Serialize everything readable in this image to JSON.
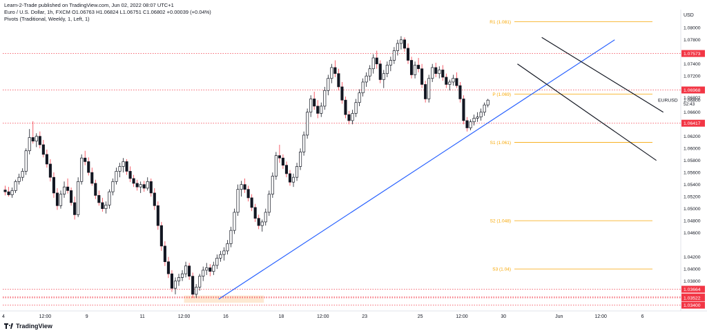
{
  "header": {
    "publisher_line": "Learn-2-Trade published on TradingView.com, Jun 02, 2022 08:07 UTC+1",
    "symbol_line": "Euro / U.S. Dollar, 1h, FXCM  O1.06763  H1.06824  L1.06751  C1.06802  +0.00039 (+0.04%)",
    "indicator_line": "Pivots (Traditional, Weekly, 1, Left, 1)"
  },
  "footer": {
    "brand": "TradingView",
    "logo_icon": "tradingview-logo-icon"
  },
  "chart_data": {
    "type": "candlestick",
    "symbol": "EURUSD",
    "currency_label": "USD",
    "timeframe": "1h",
    "ylim": [
      1.0335,
      1.083
    ],
    "y_ticks": [
      1.08,
      1.078,
      1.074,
      1.072,
      1.068,
      1.066,
      1.062,
      1.06,
      1.058,
      1.056,
      1.054,
      1.052,
      1.05,
      1.048,
      1.046,
      1.042,
      1.04,
      1.038
    ],
    "y_tick_labels": [
      "1.08000",
      "1.07800",
      "1.07400",
      "1.07200",
      "1.06800",
      "1.06600",
      "1.06200",
      "1.06000",
      "1.05800",
      "1.05600",
      "1.05400",
      "1.05200",
      "1.05000",
      "1.04800",
      "1.04600",
      "1.04200",
      "1.04000",
      "1.03800"
    ],
    "x_ticks": [
      {
        "label": "4",
        "bar": 0
      },
      {
        "label": "12:00",
        "bar": 12
      },
      {
        "label": "9",
        "bar": 24
      },
      {
        "label": "11",
        "bar": 40
      },
      {
        "label": "12:00",
        "bar": 52
      },
      {
        "label": "16",
        "bar": 64
      },
      {
        "label": "18",
        "bar": 80
      },
      {
        "label": "12:00",
        "bar": 92
      },
      {
        "label": "23",
        "bar": 104
      },
      {
        "label": "25",
        "bar": 120
      },
      {
        "label": "12:00",
        "bar": 132
      },
      {
        "label": "30",
        "bar": 144
      },
      {
        "label": "Jun",
        "bar": 160
      },
      {
        "label": "12:00",
        "bar": 172
      },
      {
        "label": "6",
        "bar": 184
      }
    ],
    "ohlc": [
      [
        1.0531,
        1.0538,
        1.0522,
        1.0528
      ],
      [
        1.0528,
        1.0536,
        1.052,
        1.0523
      ],
      [
        1.0523,
        1.0535,
        1.0518,
        1.053
      ],
      [
        1.053,
        1.0548,
        1.0526,
        1.0545
      ],
      [
        1.0545,
        1.0558,
        1.054,
        1.0552
      ],
      [
        1.0552,
        1.0567,
        1.0546,
        1.0562
      ],
      [
        1.0562,
        1.06,
        1.0556,
        1.0596
      ],
      [
        1.0596,
        1.0632,
        1.059,
        1.0618
      ],
      [
        1.0618,
        1.0645,
        1.0608,
        1.0612
      ],
      [
        1.0612,
        1.0625,
        1.0602,
        1.062
      ],
      [
        1.062,
        1.0628,
        1.06,
        1.0606
      ],
      [
        1.0606,
        1.0614,
        1.0585,
        1.059
      ],
      [
        1.059,
        1.0598,
        1.0568,
        1.0574
      ],
      [
        1.0574,
        1.0582,
        1.0545,
        1.0552
      ],
      [
        1.0552,
        1.056,
        1.0518,
        1.0526
      ],
      [
        1.0526,
        1.0534,
        1.0498,
        1.0505
      ],
      [
        1.0505,
        1.053,
        1.05,
        1.0524
      ],
      [
        1.0524,
        1.0545,
        1.0518,
        1.0536
      ],
      [
        1.0536,
        1.055,
        1.0525,
        1.053
      ],
      [
        1.053,
        1.0535,
        1.0505,
        1.051
      ],
      [
        1.051,
        1.052,
        1.0482,
        1.049
      ],
      [
        1.049,
        1.0552,
        1.0486,
        1.0545
      ],
      [
        1.0545,
        1.059,
        1.054,
        1.0584
      ],
      [
        1.0584,
        1.0596,
        1.0572,
        1.0578
      ],
      [
        1.0578,
        1.0585,
        1.0555,
        1.056
      ],
      [
        1.056,
        1.0568,
        1.0538,
        1.0542
      ],
      [
        1.0542,
        1.0548,
        1.0516,
        1.0522
      ],
      [
        1.0522,
        1.053,
        1.0505,
        1.051
      ],
      [
        1.051,
        1.0518,
        1.0495,
        1.05
      ],
      [
        1.05,
        1.0512,
        1.0492,
        1.0506
      ],
      [
        1.0506,
        1.0532,
        1.05,
        1.0528
      ],
      [
        1.0528,
        1.055,
        1.0522,
        1.0545
      ],
      [
        1.0545,
        1.0568,
        1.054,
        1.0562
      ],
      [
        1.0562,
        1.0576,
        1.0552,
        1.057
      ],
      [
        1.057,
        1.0584,
        1.056,
        1.0578
      ],
      [
        1.0578,
        1.0582,
        1.0556,
        1.0562
      ],
      [
        1.0562,
        1.057,
        1.0544,
        1.055
      ],
      [
        1.055,
        1.0556,
        1.0536,
        1.0542
      ],
      [
        1.0542,
        1.0548,
        1.053,
        1.0536
      ],
      [
        1.0536,
        1.0545,
        1.0526,
        1.054
      ],
      [
        1.054,
        1.0546,
        1.0528,
        1.0534
      ],
      [
        1.0534,
        1.0552,
        1.053,
        1.0545
      ],
      [
        1.0545,
        1.055,
        1.052,
        1.0526
      ],
      [
        1.0526,
        1.0534,
        1.0498,
        1.0505
      ],
      [
        1.0505,
        1.0512,
        1.0465,
        1.0472
      ],
      [
        1.0472,
        1.0478,
        1.043,
        1.0438
      ],
      [
        1.0438,
        1.0446,
        1.0405,
        1.0412
      ],
      [
        1.0412,
        1.042,
        1.0385,
        1.0392
      ],
      [
        1.0392,
        1.0398,
        1.0362,
        1.0368
      ],
      [
        1.0368,
        1.0386,
        1.0358,
        1.038
      ],
      [
        1.038,
        1.0392,
        1.0372,
        1.0386
      ],
      [
        1.0386,
        1.0398,
        1.038,
        1.0392
      ],
      [
        1.0392,
        1.0412,
        1.0386,
        1.0405
      ],
      [
        1.0405,
        1.041,
        1.0382,
        1.0388
      ],
      [
        1.0388,
        1.0394,
        1.0352,
        1.0358
      ],
      [
        1.0358,
        1.0375,
        1.0352,
        1.037
      ],
      [
        1.037,
        1.0392,
        1.0364,
        1.0388
      ],
      [
        1.0388,
        1.0404,
        1.038,
        1.0398
      ],
      [
        1.0398,
        1.041,
        1.039,
        1.0402
      ],
      [
        1.0402,
        1.0408,
        1.0388,
        1.0396
      ],
      [
        1.0396,
        1.0412,
        1.039,
        1.0406
      ],
      [
        1.0406,
        1.0424,
        1.04,
        1.0418
      ],
      [
        1.0418,
        1.043,
        1.0412,
        1.0424
      ],
      [
        1.0424,
        1.0436,
        1.0414,
        1.043
      ],
      [
        1.043,
        1.0448,
        1.0424,
        1.0442
      ],
      [
        1.0442,
        1.047,
        1.0436,
        1.0464
      ],
      [
        1.0464,
        1.05,
        1.0458,
        1.0494
      ],
      [
        1.0494,
        1.054,
        1.0488,
        1.0532
      ],
      [
        1.0532,
        1.0546,
        1.052,
        1.054
      ],
      [
        1.054,
        1.055,
        1.0526,
        1.0532
      ],
      [
        1.0532,
        1.0538,
        1.0512,
        1.0518
      ],
      [
        1.0518,
        1.0524,
        1.0496,
        1.0502
      ],
      [
        1.0502,
        1.0508,
        1.0478,
        1.0484
      ],
      [
        1.0484,
        1.049,
        1.0466,
        1.0472
      ],
      [
        1.0472,
        1.0482,
        1.0462,
        1.0478
      ],
      [
        1.0478,
        1.05,
        1.0472,
        1.0494
      ],
      [
        1.0494,
        1.053,
        1.0488,
        1.0524
      ],
      [
        1.0524,
        1.056,
        1.0518,
        1.0554
      ],
      [
        1.0554,
        1.0594,
        1.0548,
        1.0588
      ],
      [
        1.0588,
        1.0606,
        1.0576,
        1.0584
      ],
      [
        1.0584,
        1.059,
        1.0566,
        1.0572
      ],
      [
        1.0572,
        1.0578,
        1.0552,
        1.0558
      ],
      [
        1.0558,
        1.0564,
        1.0538,
        1.0544
      ],
      [
        1.0544,
        1.0558,
        1.0536,
        1.0552
      ],
      [
        1.0552,
        1.0576,
        1.0546,
        1.057
      ],
      [
        1.057,
        1.06,
        1.0564,
        1.0594
      ],
      [
        1.0594,
        1.0628,
        1.0588,
        1.0622
      ],
      [
        1.0622,
        1.0666,
        1.0616,
        1.066
      ],
      [
        1.066,
        1.0688,
        1.0652,
        1.0682
      ],
      [
        1.0682,
        1.0694,
        1.0664,
        1.067
      ],
      [
        1.067,
        1.068,
        1.065,
        1.0658
      ],
      [
        1.0658,
        1.0676,
        1.0652,
        1.067
      ],
      [
        1.067,
        1.0702,
        1.0664,
        1.0696
      ],
      [
        1.0696,
        1.0722,
        1.0688,
        1.0716
      ],
      [
        1.0716,
        1.074,
        1.0708,
        1.0734
      ],
      [
        1.0734,
        1.0746,
        1.0718,
        1.0724
      ],
      [
        1.0724,
        1.0732,
        1.0696,
        1.0702
      ],
      [
        1.0702,
        1.071,
        1.0674,
        1.068
      ],
      [
        1.068,
        1.0686,
        1.065,
        1.0656
      ],
      [
        1.0656,
        1.0662,
        1.064,
        1.0646
      ],
      [
        1.0646,
        1.0664,
        1.064,
        1.0658
      ],
      [
        1.0658,
        1.0682,
        1.0652,
        1.0676
      ],
      [
        1.0676,
        1.0698,
        1.067,
        1.0692
      ],
      [
        1.0692,
        1.0716,
        1.0686,
        1.071
      ],
      [
        1.071,
        1.0726,
        1.0702,
        1.072
      ],
      [
        1.072,
        1.0738,
        1.0712,
        1.0732
      ],
      [
        1.0732,
        1.0756,
        1.0724,
        1.075
      ],
      [
        1.075,
        1.0762,
        1.0732,
        1.074
      ],
      [
        1.074,
        1.0746,
        1.0708,
        1.0714
      ],
      [
        1.0714,
        1.073,
        1.07,
        1.0724
      ],
      [
        1.0724,
        1.0744,
        1.0718,
        1.0738
      ],
      [
        1.0738,
        1.0752,
        1.0728,
        1.0746
      ],
      [
        1.0746,
        1.0768,
        1.074,
        1.0762
      ],
      [
        1.0762,
        1.078,
        1.0754,
        1.0774
      ],
      [
        1.0774,
        1.0786,
        1.0764,
        1.078
      ],
      [
        1.078,
        1.0784,
        1.076,
        1.0766
      ],
      [
        1.0766,
        1.0774,
        1.074,
        1.0746
      ],
      [
        1.0746,
        1.0752,
        1.0716,
        1.0722
      ],
      [
        1.0722,
        1.0744,
        1.0716,
        1.0738
      ],
      [
        1.0738,
        1.075,
        1.0726,
        1.0732
      ],
      [
        1.0732,
        1.074,
        1.07,
        1.0706
      ],
      [
        1.0706,
        1.0712,
        1.0676,
        1.0682
      ],
      [
        1.0682,
        1.0722,
        1.0676,
        1.0716
      ],
      [
        1.0716,
        1.074,
        1.071,
        1.0734
      ],
      [
        1.0734,
        1.0742,
        1.0718,
        1.0724
      ],
      [
        1.0724,
        1.0736,
        1.0716,
        1.073
      ],
      [
        1.073,
        1.0738,
        1.0712,
        1.0718
      ],
      [
        1.0718,
        1.0724,
        1.07,
        1.0706
      ],
      [
        1.0706,
        1.0714,
        1.0696,
        1.071
      ],
      [
        1.071,
        1.0722,
        1.0704,
        1.0716
      ],
      [
        1.0716,
        1.0726,
        1.07,
        1.0704
      ],
      [
        1.0704,
        1.071,
        1.0676,
        1.0682
      ],
      [
        1.0682,
        1.0688,
        1.064,
        1.0646
      ],
      [
        1.0646,
        1.0652,
        1.0628,
        1.0634
      ],
      [
        1.0634,
        1.0648,
        1.063,
        1.0644
      ],
      [
        1.0644,
        1.0656,
        1.0638,
        1.065
      ],
      [
        1.065,
        1.066,
        1.0644,
        1.0652
      ],
      [
        1.0652,
        1.0666,
        1.0646,
        1.066
      ],
      [
        1.066,
        1.0676,
        1.0654,
        1.0672
      ],
      [
        1.0672,
        1.0682,
        1.0668,
        1.068
      ]
    ],
    "horizontal_levels": [
      {
        "value": 1.07573,
        "label": "1.07573",
        "style": "dotted-red"
      },
      {
        "value": 1.06968,
        "label": "1.06968",
        "style": "dotted-red"
      },
      {
        "value": 1.06417,
        "label": "1.06417",
        "style": "dotted-red"
      },
      {
        "value": 1.03664,
        "label": "1.03664",
        "style": "dotted-red"
      },
      {
        "value": 1.03536,
        "label": "1.03536",
        "style": "dotted-red"
      },
      {
        "value": 1.03522,
        "label": "1.03522",
        "style": "dotted-red"
      },
      {
        "value": 1.034,
        "label": "1.03400",
        "style": "dotted-red"
      }
    ],
    "pivots": [
      {
        "name": "R1",
        "label": "R1 (1.081)",
        "value": 1.081
      },
      {
        "name": "P",
        "label": "P (1.069)",
        "value": 1.069
      },
      {
        "name": "S1",
        "label": "S1 (1.061)",
        "value": 1.061
      },
      {
        "name": "S2",
        "label": "S2 (1.048)",
        "value": 1.048
      },
      {
        "name": "S3",
        "label": "S3 (1.04)",
        "value": 1.04
      }
    ],
    "trendlines": [
      {
        "name": "uptrend-line",
        "color": "#2962ff",
        "from": {
          "bar": 62,
          "price": 1.035
        },
        "to": {
          "bar": 176,
          "price": 1.078
        }
      },
      {
        "name": "channel-upper-line",
        "color": "#131722",
        "from": {
          "bar": 155,
          "price": 1.0784
        },
        "to": {
          "bar": 190,
          "price": 1.066
        }
      },
      {
        "name": "channel-lower-line",
        "color": "#131722",
        "from": {
          "bar": 148,
          "price": 1.074
        },
        "to": {
          "bar": 188,
          "price": 1.058
        }
      }
    ],
    "price_tags": {
      "current": {
        "symbol": "EURUSD",
        "value": "1.06802",
        "countdown": "52:43"
      }
    },
    "colors": {
      "up": "#131722",
      "down": "#131722",
      "up_wick": "#131722",
      "down_wick": "#f23645",
      "level": "#f23645",
      "pivot": "#f7a600",
      "trend": "#2962ff"
    }
  }
}
